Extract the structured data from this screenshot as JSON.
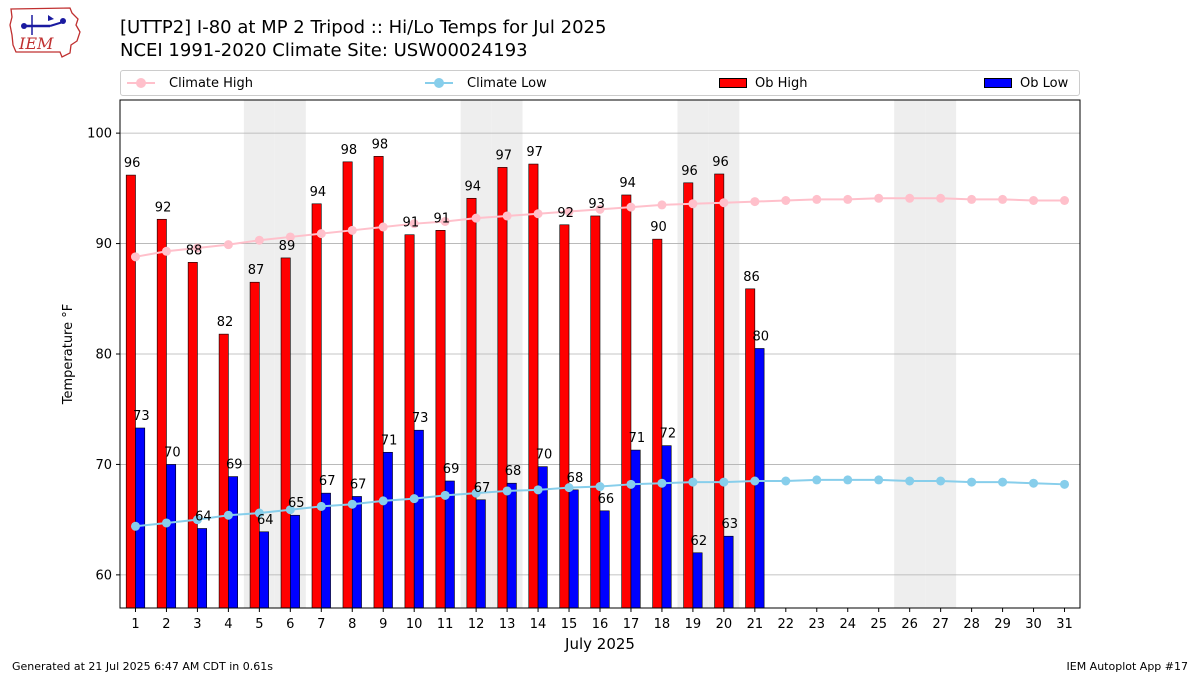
{
  "header": {
    "logo_text": "IEM",
    "title_line1": "[UTTP2] I-80 at MP 2 Tripod  :: Hi/Lo Temps for Jul 2025",
    "title_line2": "NCEI 1991-2020 Climate Site: USW00024193"
  },
  "legend": {
    "climate_high": "Climate High",
    "climate_low": "Climate Low",
    "ob_high": "Ob High",
    "ob_low": "Ob Low"
  },
  "colors": {
    "ob_high": "#ff0000",
    "ob_low": "#0000ff",
    "climate_high": "#ffc0cb",
    "climate_low": "#87ceeb",
    "weekend_shade": "#eeeeee",
    "grid": "#b0b0b0"
  },
  "chart_data": {
    "type": "bar",
    "xlabel": "July 2025",
    "ylabel": "Temperature °F",
    "ylim": [
      57,
      103
    ],
    "yticks": [
      60,
      70,
      80,
      90,
      100
    ],
    "grid": "horizontal",
    "legend_position": "top",
    "x": [
      1,
      2,
      3,
      4,
      5,
      6,
      7,
      8,
      9,
      10,
      11,
      12,
      13,
      14,
      15,
      16,
      17,
      18,
      19,
      20,
      21,
      22,
      23,
      24,
      25,
      26,
      27,
      28,
      29,
      30,
      31
    ],
    "shaded_days": [
      5,
      6,
      12,
      13,
      19,
      20,
      26,
      27
    ],
    "series": [
      {
        "name": "Ob High",
        "type": "bar",
        "values": [
          96,
          92,
          88,
          82,
          87,
          89,
          94,
          98,
          98,
          91,
          91,
          94,
          97,
          97,
          92,
          93,
          94,
          90,
          96,
          96,
          86,
          null,
          null,
          null,
          null,
          null,
          null,
          null,
          null,
          null,
          null
        ],
        "bar_tops": [
          96.2,
          92.2,
          88.3,
          81.8,
          86.5,
          88.7,
          93.6,
          97.4,
          97.9,
          90.8,
          91.2,
          94.1,
          96.9,
          97.2,
          91.7,
          92.5,
          94.4,
          90.4,
          95.5,
          96.3,
          85.9,
          null,
          null,
          null,
          null,
          null,
          null,
          null,
          null,
          null,
          null
        ]
      },
      {
        "name": "Ob Low",
        "type": "bar",
        "values": [
          73,
          70,
          64,
          69,
          64,
          65,
          67,
          67,
          71,
          73,
          69,
          67,
          68,
          70,
          68,
          66,
          71,
          72,
          62,
          63,
          80,
          null,
          null,
          null,
          null,
          null,
          null,
          null,
          null,
          null,
          null
        ],
        "bar_tops": [
          73.3,
          70.0,
          64.2,
          68.9,
          63.9,
          65.4,
          67.4,
          67.1,
          71.1,
          73.1,
          68.5,
          66.8,
          68.3,
          69.8,
          67.7,
          65.8,
          71.3,
          71.7,
          62.0,
          63.5,
          80.5,
          null,
          null,
          null,
          null,
          null,
          null,
          null,
          null,
          null,
          null
        ]
      },
      {
        "name": "Climate High",
        "type": "line",
        "values": [
          88.8,
          89.3,
          89.6,
          89.9,
          90.3,
          90.6,
          90.9,
          91.2,
          91.5,
          91.8,
          92.0,
          92.3,
          92.5,
          92.7,
          92.9,
          93.1,
          93.3,
          93.5,
          93.6,
          93.7,
          93.8,
          93.9,
          94.0,
          94.0,
          94.1,
          94.1,
          94.1,
          94.0,
          94.0,
          93.9,
          93.9
        ]
      },
      {
        "name": "Climate Low",
        "type": "line",
        "values": [
          64.4,
          64.7,
          65.0,
          65.4,
          65.6,
          65.9,
          66.2,
          66.4,
          66.7,
          66.9,
          67.2,
          67.4,
          67.6,
          67.7,
          67.9,
          68.0,
          68.2,
          68.3,
          68.4,
          68.4,
          68.5,
          68.5,
          68.6,
          68.6,
          68.6,
          68.5,
          68.5,
          68.4,
          68.4,
          68.3,
          68.2
        ]
      }
    ]
  },
  "footer": {
    "left": "Generated at 21 Jul 2025 6:47 AM CDT in 0.61s",
    "right": "IEM Autoplot App #17"
  }
}
